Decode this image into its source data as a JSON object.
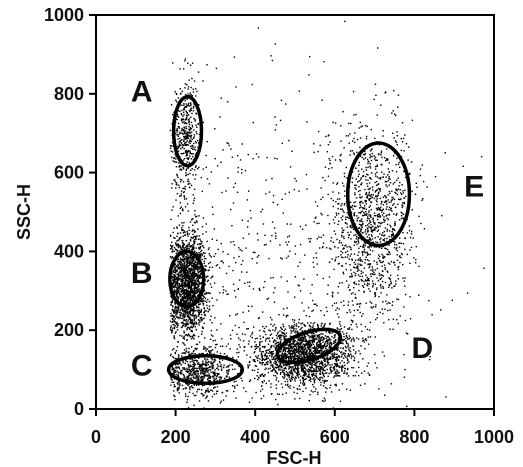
{
  "chart_data": {
    "type": "scatter",
    "xlabel": "FSC-H",
    "ylabel": "SSC-H",
    "xlim": [
      0,
      1000
    ],
    "ylim": [
      0,
      1000
    ],
    "xticks": [
      0,
      200,
      400,
      600,
      800,
      1000
    ],
    "yticks": [
      0,
      200,
      400,
      600,
      800,
      1000
    ],
    "xtick_labels": [
      "0",
      "200",
      "400",
      "600",
      "800",
      "1000"
    ],
    "ytick_labels": [
      "0",
      "200",
      "400",
      "600",
      "800",
      "1000"
    ],
    "grid": false,
    "point_color": "#000000",
    "gate_color": "#000000",
    "populations": [
      {
        "label": "A",
        "cx": 225,
        "cy": 700,
        "sx": 18,
        "sy": 75,
        "n": 420
      },
      {
        "label": "B",
        "cx": 230,
        "cy": 320,
        "sx": 25,
        "sy": 65,
        "n": 1800
      },
      {
        "label": "C",
        "cx": 255,
        "cy": 95,
        "sx": 45,
        "sy": 30,
        "n": 650
      },
      {
        "label": "D",
        "cx": 520,
        "cy": 140,
        "sx": 60,
        "sy": 38,
        "n": 1900
      },
      {
        "label": "E",
        "cx": 690,
        "cy": 470,
        "sx": 55,
        "sy": 120,
        "n": 1150
      },
      {
        "label": "",
        "cx": 450,
        "cy": 400,
        "sx": 200,
        "sy": 230,
        "n": 650
      }
    ],
    "gates": [
      {
        "label": "A",
        "cx": 230,
        "cy": 705,
        "rx": 70,
        "ry": 175,
        "label_x": 115,
        "label_y": 800
      },
      {
        "label": "B",
        "cx": 228,
        "cy": 330,
        "rx": 85,
        "ry": 140,
        "label_x": 115,
        "label_y": 340
      },
      {
        "label": "C",
        "cx": 275,
        "cy": 100,
        "rx": 185,
        "ry": 70,
        "label_x": 115,
        "label_y": 105
      },
      {
        "label": "D",
        "cx": 535,
        "cy": 160,
        "rx": 165,
        "ry": 70,
        "label_x": 820,
        "label_y": 150,
        "rotate": -18
      },
      {
        "label": "E",
        "cx": 710,
        "cy": 545,
        "rx": 155,
        "ry": 260,
        "label_x": 950,
        "label_y": 560
      }
    ]
  }
}
